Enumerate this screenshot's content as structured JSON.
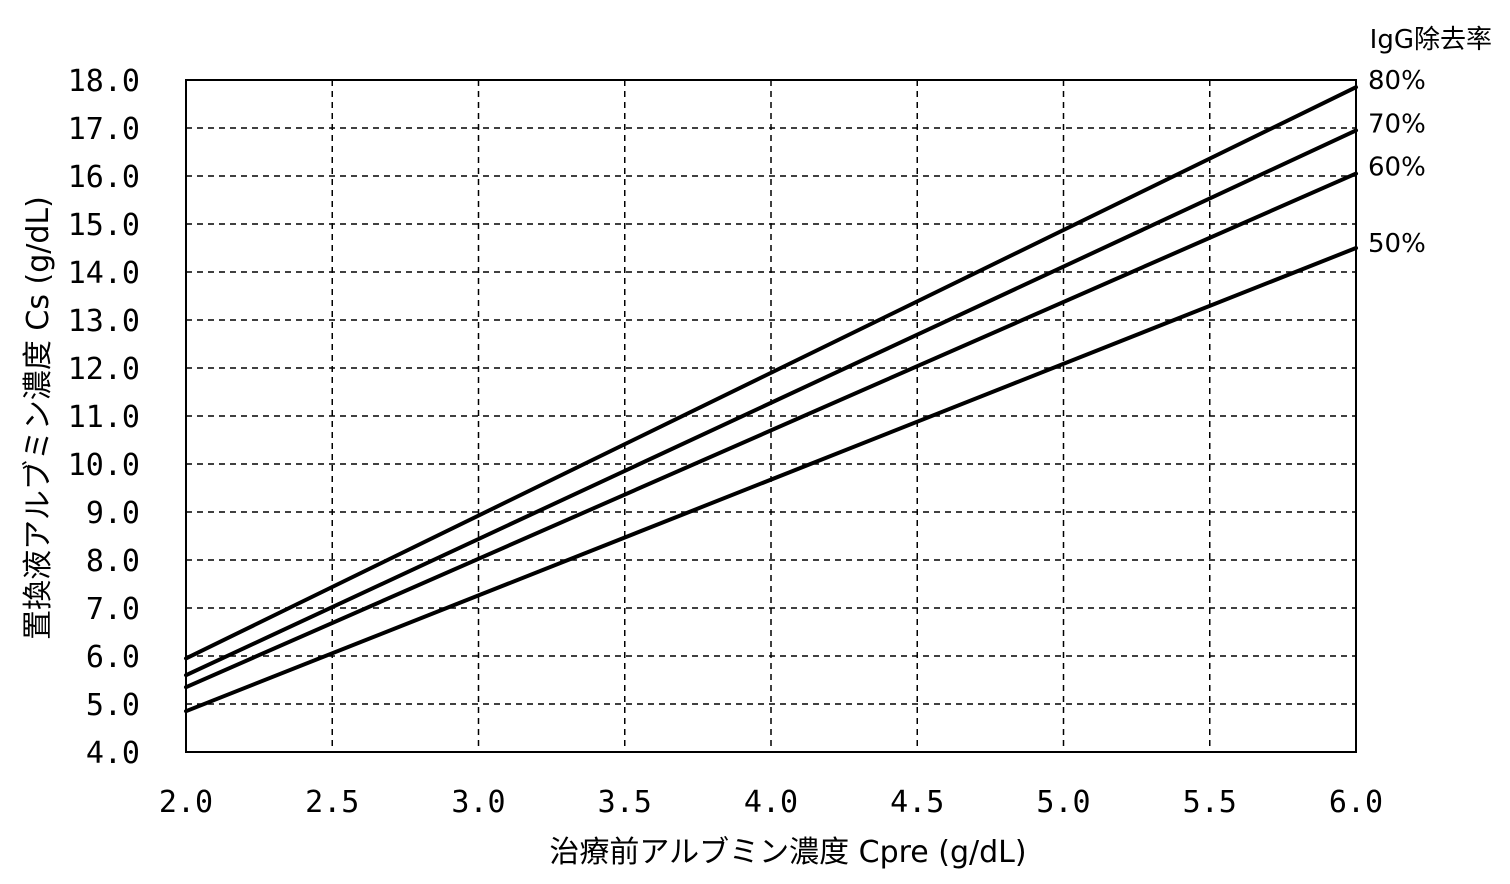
{
  "chart_data": {
    "type": "line",
    "title": "",
    "xlabel": "治療前アルブミン濃度 Cpre (g/dL)",
    "ylabel": "置換液アルブミン濃度 Cs (g/dL)",
    "xlim": [
      2.0,
      6.0
    ],
    "ylim": [
      4.0,
      18.0
    ],
    "x_ticks": [
      2.0,
      2.5,
      3.0,
      3.5,
      4.0,
      4.5,
      5.0,
      5.5,
      6.0
    ],
    "y_ticks": [
      4.0,
      5.0,
      6.0,
      7.0,
      8.0,
      9.0,
      10.0,
      11.0,
      12.0,
      13.0,
      14.0,
      15.0,
      16.0,
      17.0,
      18.0
    ],
    "x_tick_labels": [
      "2.0",
      "2.5",
      "3.0",
      "3.5",
      "4.0",
      "4.5",
      "5.0",
      "5.5",
      "6.0"
    ],
    "y_tick_labels": [
      "4.0",
      "5.0",
      "6.0",
      "7.0",
      "8.0",
      "9.0",
      "10.0",
      "11.0",
      "12.0",
      "13.0",
      "14.0",
      "15.0",
      "16.0",
      "17.0",
      "18.0"
    ],
    "grid": true,
    "grid_style": "dashed",
    "legend_title": "IgG除去率",
    "legend_placement": "right, at line ends",
    "line_color": "#000000",
    "series": [
      {
        "name": "80%",
        "x": [
          2.0,
          6.0
        ],
        "values": [
          5.95,
          17.85
        ]
      },
      {
        "name": "70%",
        "x": [
          2.0,
          6.0
        ],
        "values": [
          5.6,
          16.95
        ]
      },
      {
        "name": "60%",
        "x": [
          2.0,
          6.0
        ],
        "values": [
          5.35,
          16.05
        ]
      },
      {
        "name": "50%",
        "x": [
          2.0,
          6.0
        ],
        "values": [
          4.85,
          14.5
        ]
      }
    ]
  }
}
